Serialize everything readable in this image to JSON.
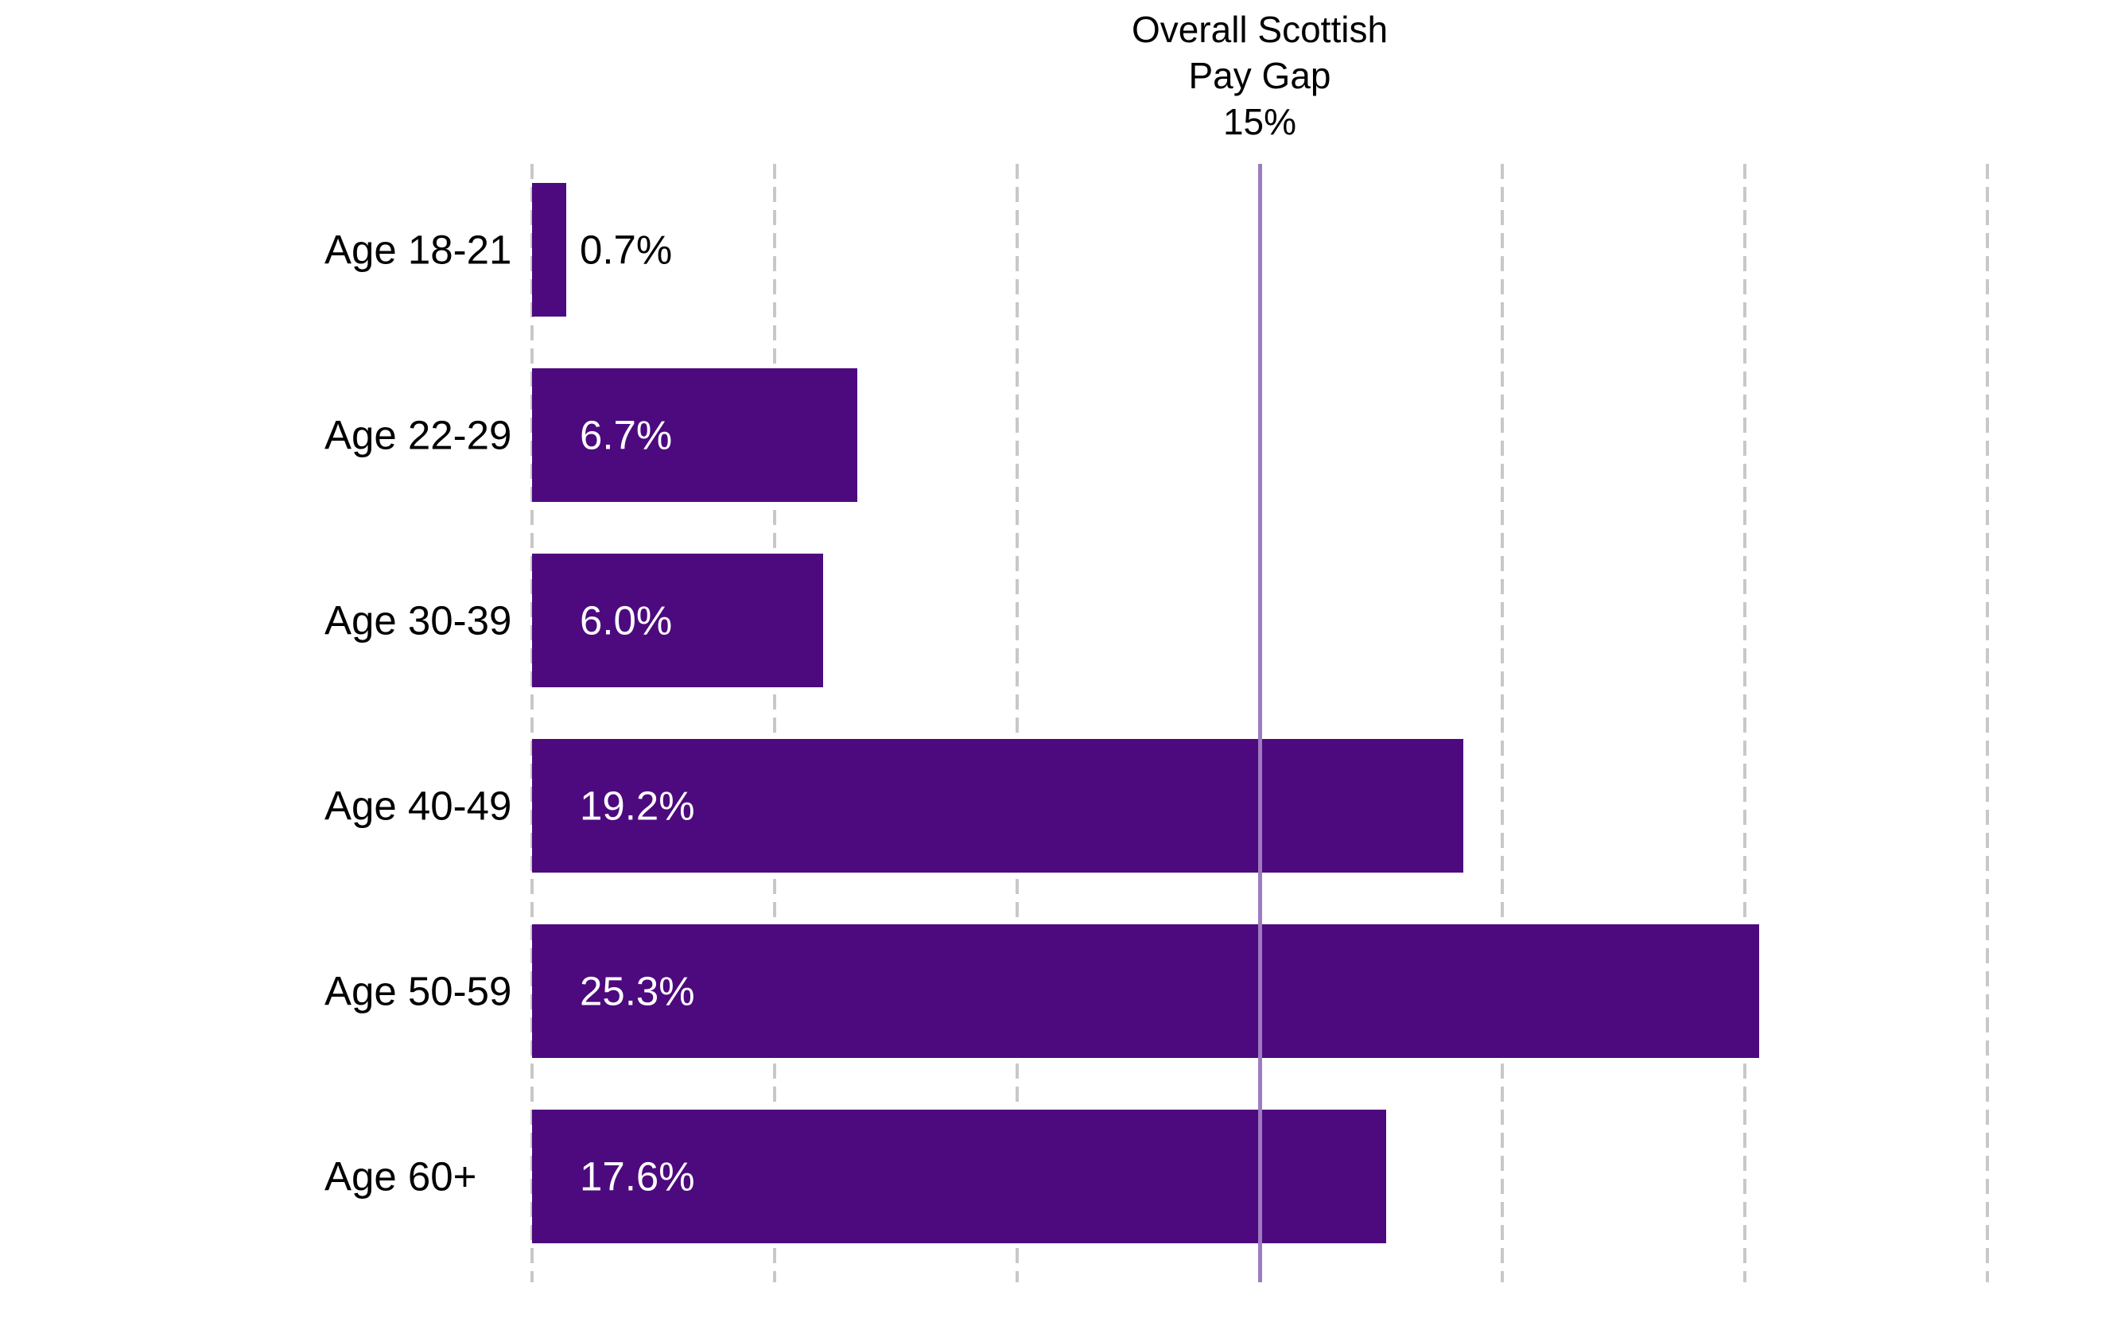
{
  "annotation": {
    "lines": [
      "Overall Scottish",
      "Pay Gap",
      "15%"
    ]
  },
  "chart_data": {
    "type": "bar",
    "orientation": "horizontal",
    "title": "",
    "xlabel": "",
    "ylabel": "",
    "categories": [
      "Age 18-21",
      "Age 22-29",
      "Age 30-39",
      "Age 40-49",
      "Age 50-59",
      "Age 60+"
    ],
    "values": [
      0.7,
      6.7,
      6.0,
      19.2,
      25.3,
      17.6
    ],
    "value_labels": [
      "0.7%",
      "6.7%",
      "6.0%",
      "19.2%",
      "25.3%",
      "17.6%"
    ],
    "label_inside": [
      false,
      true,
      true,
      true,
      true,
      true
    ],
    "reference_line": {
      "value": 15,
      "label": "Overall Scottish Pay Gap 15%"
    },
    "axis": {
      "min": 0,
      "max": 32,
      "gridline_step": 5,
      "gridlines": [
        0,
        5,
        10,
        15,
        20,
        25,
        30
      ],
      "tick_labels_shown": false
    },
    "grid": "vertical-dashed",
    "legend": "none",
    "colors": {
      "bar": "#4D0A7E",
      "reference_line": "#9E7BC0",
      "gridline": "#C8C8C8",
      "label_inside_text": "#FFFFFF",
      "label_outside_text": "#000000",
      "category_text": "#000000",
      "background": "#FFFFFF"
    }
  }
}
